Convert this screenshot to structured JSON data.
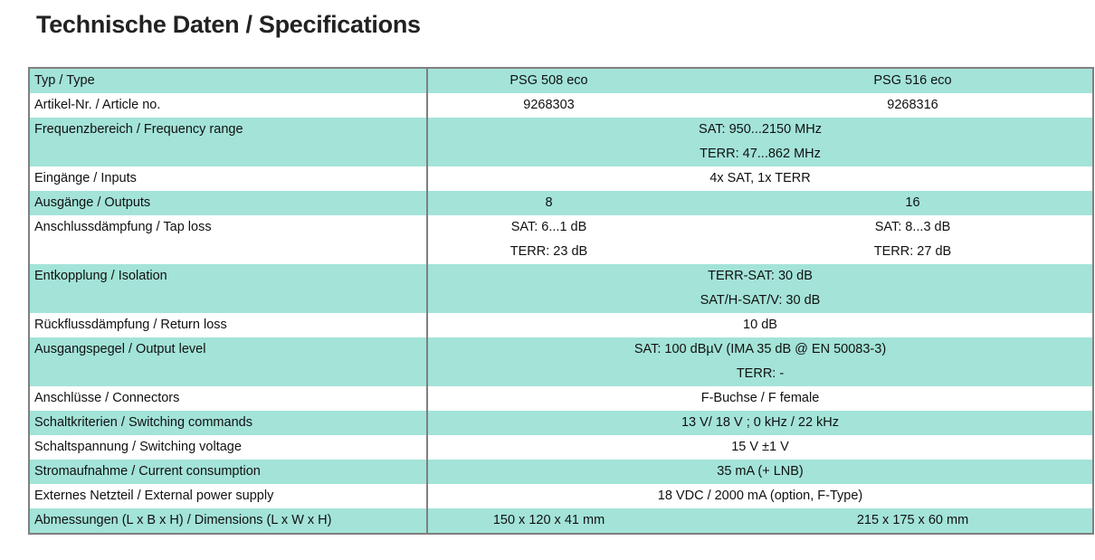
{
  "header": {
    "title": "Technische Daten / Specifications"
  },
  "table": {
    "rows": [
      {
        "label": "Typ / Type",
        "values": [
          [
            "PSG 508 eco"
          ],
          [
            "PSG 516 eco"
          ]
        ]
      },
      {
        "label": "Artikel-Nr. / Article no.",
        "values": [
          [
            "9268303"
          ],
          [
            "9268316"
          ]
        ]
      },
      {
        "label": "Frequenzbereich / Frequency range",
        "values": [
          [
            "SAT: 950...2150 MHz",
            "TERR: 47...862 MHz"
          ]
        ]
      },
      {
        "label": "Eingänge / Inputs",
        "values": [
          [
            "4x SAT, 1x TERR"
          ]
        ]
      },
      {
        "label": "Ausgänge / Outputs",
        "values": [
          [
            "8"
          ],
          [
            "16"
          ]
        ]
      },
      {
        "label": "Anschlussdämpfung / Tap loss",
        "values": [
          [
            "SAT: 6...1 dB",
            "TERR: 23 dB"
          ],
          [
            "SAT: 8...3 dB",
            "TERR: 27 dB"
          ]
        ]
      },
      {
        "label": "Entkopplung / Isolation",
        "values": [
          [
            "TERR-SAT: 30 dB",
            "SAT/H-SAT/V: 30 dB"
          ]
        ]
      },
      {
        "label": "Rückflussdämpfung / Return loss",
        "values": [
          [
            "10 dB"
          ]
        ]
      },
      {
        "label": "Ausgangspegel / Output level",
        "values": [
          [
            "SAT: 100 dBµV (IMA 35 dB @ EN 50083-3)",
            "TERR: -"
          ]
        ]
      },
      {
        "label": "Anschlüsse / Connectors",
        "values": [
          [
            "F-Buchse / F female"
          ]
        ]
      },
      {
        "label": "Schaltkriterien / Switching commands",
        "values": [
          [
            "13 V/ 18 V ; 0 kHz / 22 kHz"
          ]
        ]
      },
      {
        "label": "Schaltspannung / Switching voltage",
        "values": [
          [
            "15 V ±1 V"
          ]
        ]
      },
      {
        "label": "Stromaufnahme / Current consumption",
        "values": [
          [
            "35 mA (+ LNB)"
          ]
        ]
      },
      {
        "label": "Externes Netzteil / External power supply",
        "values": [
          [
            "18 VDC / 2000 mA (option, F-Type)"
          ]
        ]
      },
      {
        "label": "Abmessungen (L x B x H) / Dimensions (L x W x H)",
        "values": [
          [
            "150 x 120 x 41 mm"
          ],
          [
            "215 x 175 x 60 mm"
          ]
        ]
      }
    ]
  }
}
